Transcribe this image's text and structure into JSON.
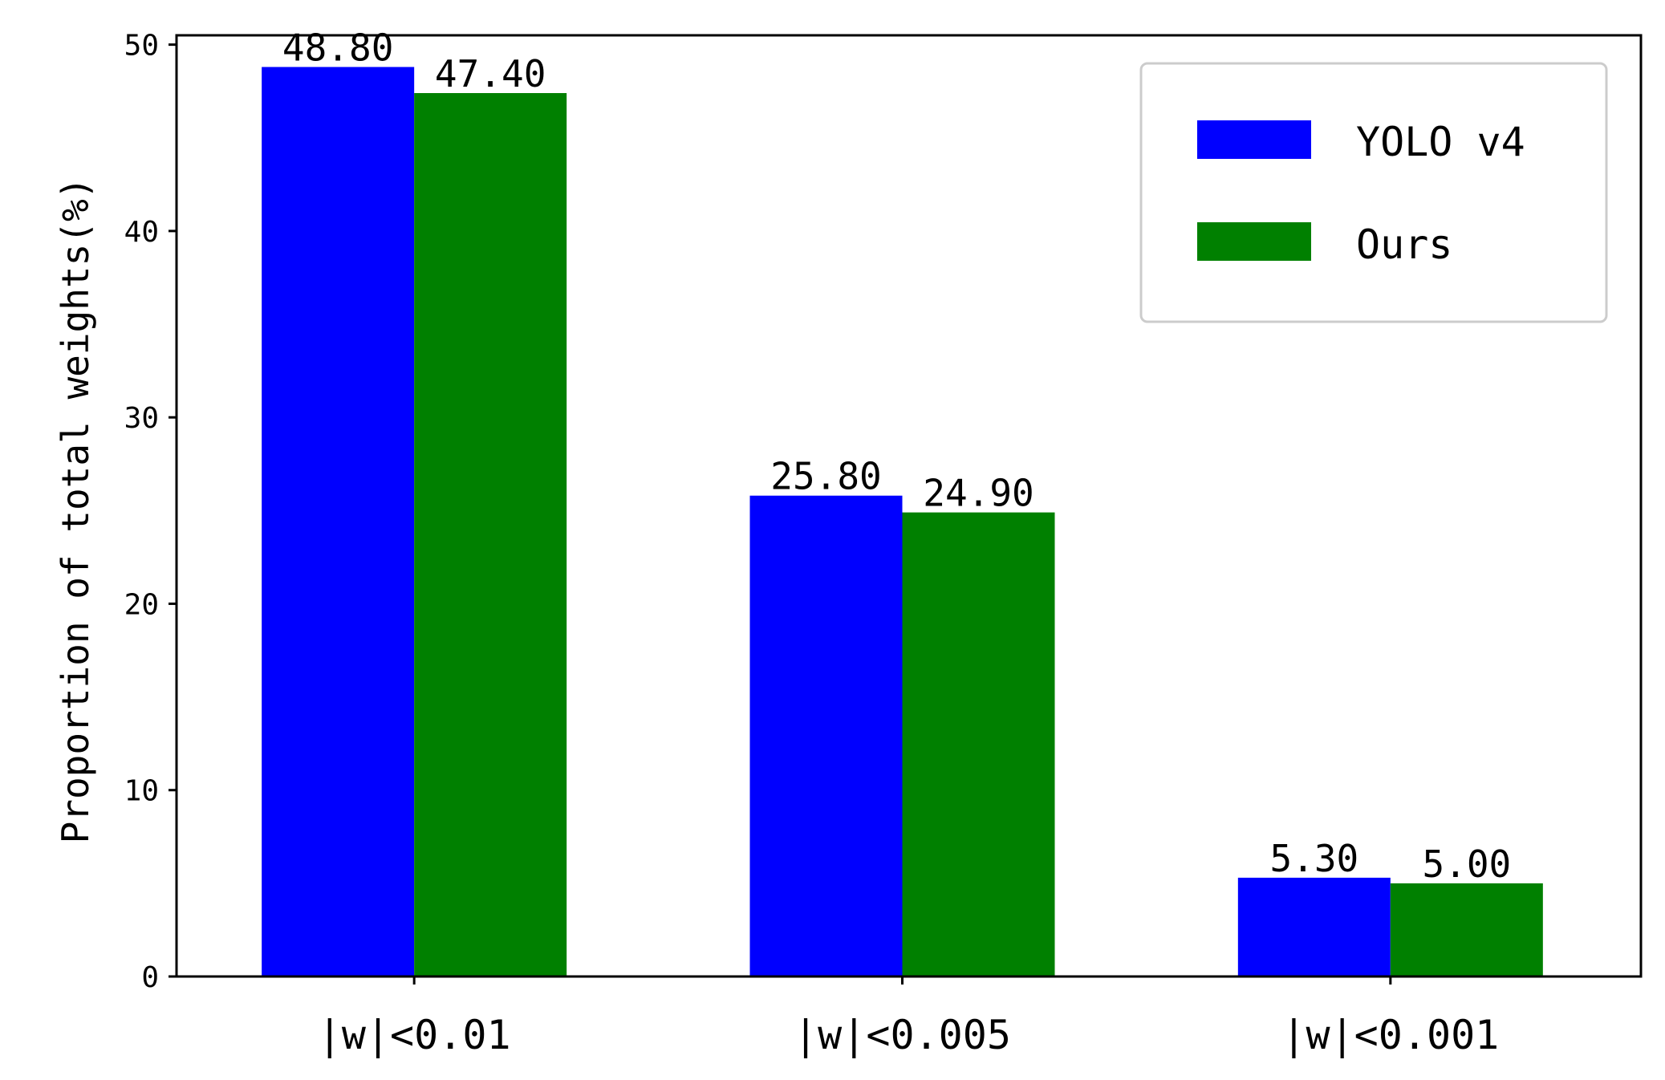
{
  "chart_data": {
    "type": "bar",
    "title": "",
    "xlabel": "",
    "ylabel": "Proportion of total weights(%)",
    "categories": [
      "|w|<0.01",
      "|w|<0.005",
      "|w|<0.001"
    ],
    "series": [
      {
        "name": "YOLO v4",
        "color": "#0000ff",
        "values": [
          48.8,
          25.8,
          5.3
        ],
        "labels": [
          "48.80",
          "25.80",
          "5.30"
        ]
      },
      {
        "name": "Ours",
        "color": "#008000",
        "values": [
          47.4,
          24.9,
          5.0
        ],
        "labels": [
          "47.40",
          "24.90",
          "5.00"
        ]
      }
    ],
    "ylim": [
      0,
      50.5
    ],
    "yticks": [
      0,
      10,
      20,
      30,
      40,
      50
    ],
    "grid": false,
    "legend_position": "top-right"
  }
}
